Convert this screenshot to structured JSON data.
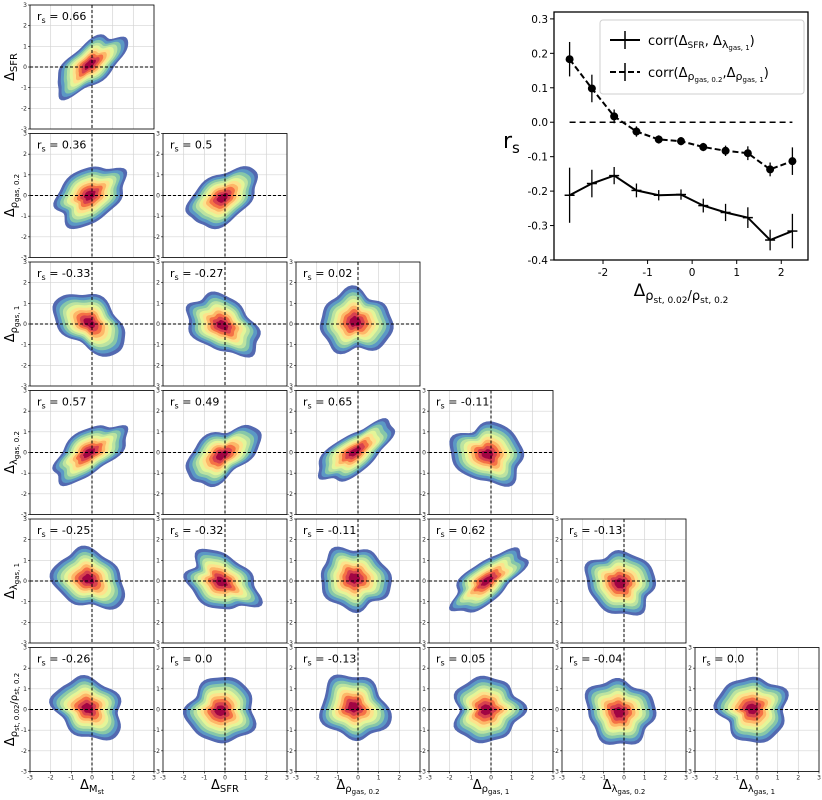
{
  "chart_data": [
    {
      "type": "corner-density-grid",
      "variables": [
        {
          "id": "Mst",
          "label": "Δ",
          "sub": "M",
          "subsub": "st"
        },
        {
          "id": "SFR",
          "label": "Δ",
          "sub": "SFR",
          "subsub": ""
        },
        {
          "id": "rho_gas_02",
          "label": "Δ",
          "sub": "ρ",
          "subsub": "gas, 0.2"
        },
        {
          "id": "rho_gas_1",
          "label": "Δ",
          "sub": "ρ",
          "subsub": "gas, 1"
        },
        {
          "id": "lambda_gas_02",
          "label": "Δ",
          "sub": "λ",
          "subsub": "gas, 0.2"
        },
        {
          "id": "lambda_gas_1",
          "label": "Δ",
          "sub": "λ",
          "subsub": "gas, 1"
        },
        {
          "id": "rho_st_ratio",
          "label": "Δ",
          "sub": "ρ",
          "subsub": "st, 0.02",
          "sub2": "ρ",
          "subsub2": "st, 0.2"
        }
      ],
      "axis_range": [
        -3,
        3
      ],
      "ticks": [
        -3,
        -2,
        -1,
        0,
        1,
        2,
        3
      ],
      "panels": [
        {
          "row": 1,
          "col": 0,
          "rs": "r_s = 0.66",
          "rho": 0.66
        },
        {
          "row": 2,
          "col": 0,
          "rs": "r_s = 0.36",
          "rho": 0.36
        },
        {
          "row": 2,
          "col": 1,
          "rs": "r_s = 0.5",
          "rho": 0.5
        },
        {
          "row": 3,
          "col": 0,
          "rs": "r_s = -0.33",
          "rho": -0.33
        },
        {
          "row": 3,
          "col": 1,
          "rs": "r_s = -0.27",
          "rho": -0.27
        },
        {
          "row": 3,
          "col": 2,
          "rs": "r_s = 0.02",
          "rho": 0.02
        },
        {
          "row": 4,
          "col": 0,
          "rs": "r_s = 0.57",
          "rho": 0.57
        },
        {
          "row": 4,
          "col": 1,
          "rs": "r_s = 0.49",
          "rho": 0.49
        },
        {
          "row": 4,
          "col": 2,
          "rs": "r_s = 0.65",
          "rho": 0.65
        },
        {
          "row": 4,
          "col": 3,
          "rs": "r_s = -0.11",
          "rho": -0.11
        },
        {
          "row": 5,
          "col": 0,
          "rs": "r_s = -0.25",
          "rho": -0.25
        },
        {
          "row": 5,
          "col": 1,
          "rs": "r_s = -0.32",
          "rho": -0.32
        },
        {
          "row": 5,
          "col": 2,
          "rs": "r_s = -0.11",
          "rho": -0.11
        },
        {
          "row": 5,
          "col": 3,
          "rs": "r_s = 0.62",
          "rho": 0.62
        },
        {
          "row": 5,
          "col": 4,
          "rs": "r_s = -0.13",
          "rho": -0.13
        },
        {
          "row": 6,
          "col": 0,
          "rs": "r_s = -0.26",
          "rho": -0.26
        },
        {
          "row": 6,
          "col": 1,
          "rs": "r_s = 0.0",
          "rho": 0.0
        },
        {
          "row": 6,
          "col": 2,
          "rs": "r_s = -0.13",
          "rho": -0.13
        },
        {
          "row": 6,
          "col": 3,
          "rs": "r_s = 0.05",
          "rho": 0.05
        },
        {
          "row": 6,
          "col": 4,
          "rs": "r_s = -0.04",
          "rho": -0.04
        },
        {
          "row": 6,
          "col": 5,
          "rs": "r_s = 0.0",
          "rho": 0.0
        }
      ],
      "colors": [
        "#4a61ad",
        "#5c9bc6",
        "#89c9a7",
        "#bfe5a0",
        "#e6f598",
        "#fee08b",
        "#fdb466",
        "#f46d43",
        "#d53e4f",
        "#9e0142"
      ]
    },
    {
      "type": "line",
      "ylabel": "r_s",
      "xlabel": "Δ ρ_st,0.02/ρ_st,0.2",
      "xlim": [
        -3.1,
        2.6
      ],
      "ylim": [
        -0.4,
        0.32
      ],
      "xticks": [
        -2,
        -1,
        0,
        1,
        2
      ],
      "yticks": [
        -0.4,
        -0.3,
        -0.2,
        -0.1,
        0.0,
        0.1,
        0.2,
        0.3
      ],
      "x": [
        -2.75,
        -2.25,
        -1.75,
        -1.25,
        -0.75,
        -0.25,
        0.25,
        0.75,
        1.25,
        1.75,
        2.25
      ],
      "series": [
        {
          "name": "corr(ΔSFR, Δλgas,1)",
          "style": "solid",
          "marker": "plus",
          "values": [
            -0.212,
            -0.178,
            -0.155,
            -0.198,
            -0.212,
            -0.21,
            -0.242,
            -0.262,
            -0.277,
            -0.342,
            -0.316
          ],
          "err": [
            0.08,
            0.04,
            0.025,
            0.02,
            0.015,
            0.015,
            0.02,
            0.025,
            0.03,
            0.03,
            0.05
          ]
        },
        {
          "name": "corr(Δρgas,0.2, Δρgas,1)",
          "style": "dashed",
          "marker": "circle",
          "values": [
            0.183,
            0.098,
            0.017,
            -0.027,
            -0.05,
            -0.055,
            -0.072,
            -0.083,
            -0.09,
            -0.137,
            -0.113
          ],
          "err": [
            0.05,
            0.04,
            0.02,
            0.015,
            0.012,
            0.012,
            0.012,
            0.015,
            0.02,
            0.02,
            0.04
          ]
        }
      ],
      "zero_line": {
        "y": 0.0,
        "x_range": [
          -2.75,
          2.25
        ]
      },
      "legend": {
        "position": "top-right",
        "entries": [
          {
            "main": "corr(Δ",
            "a": "SFR",
            "mid": ", Δ",
            "b": "λ",
            "bsub": "gas, 1",
            "end": ")"
          },
          {
            "main": "corr(Δ",
            "a": "ρ",
            "asub": "gas, 0.2",
            "mid": ",Δ",
            "b": "ρ",
            "bsub": "gas, 1",
            "end": ")"
          }
        ]
      }
    }
  ]
}
